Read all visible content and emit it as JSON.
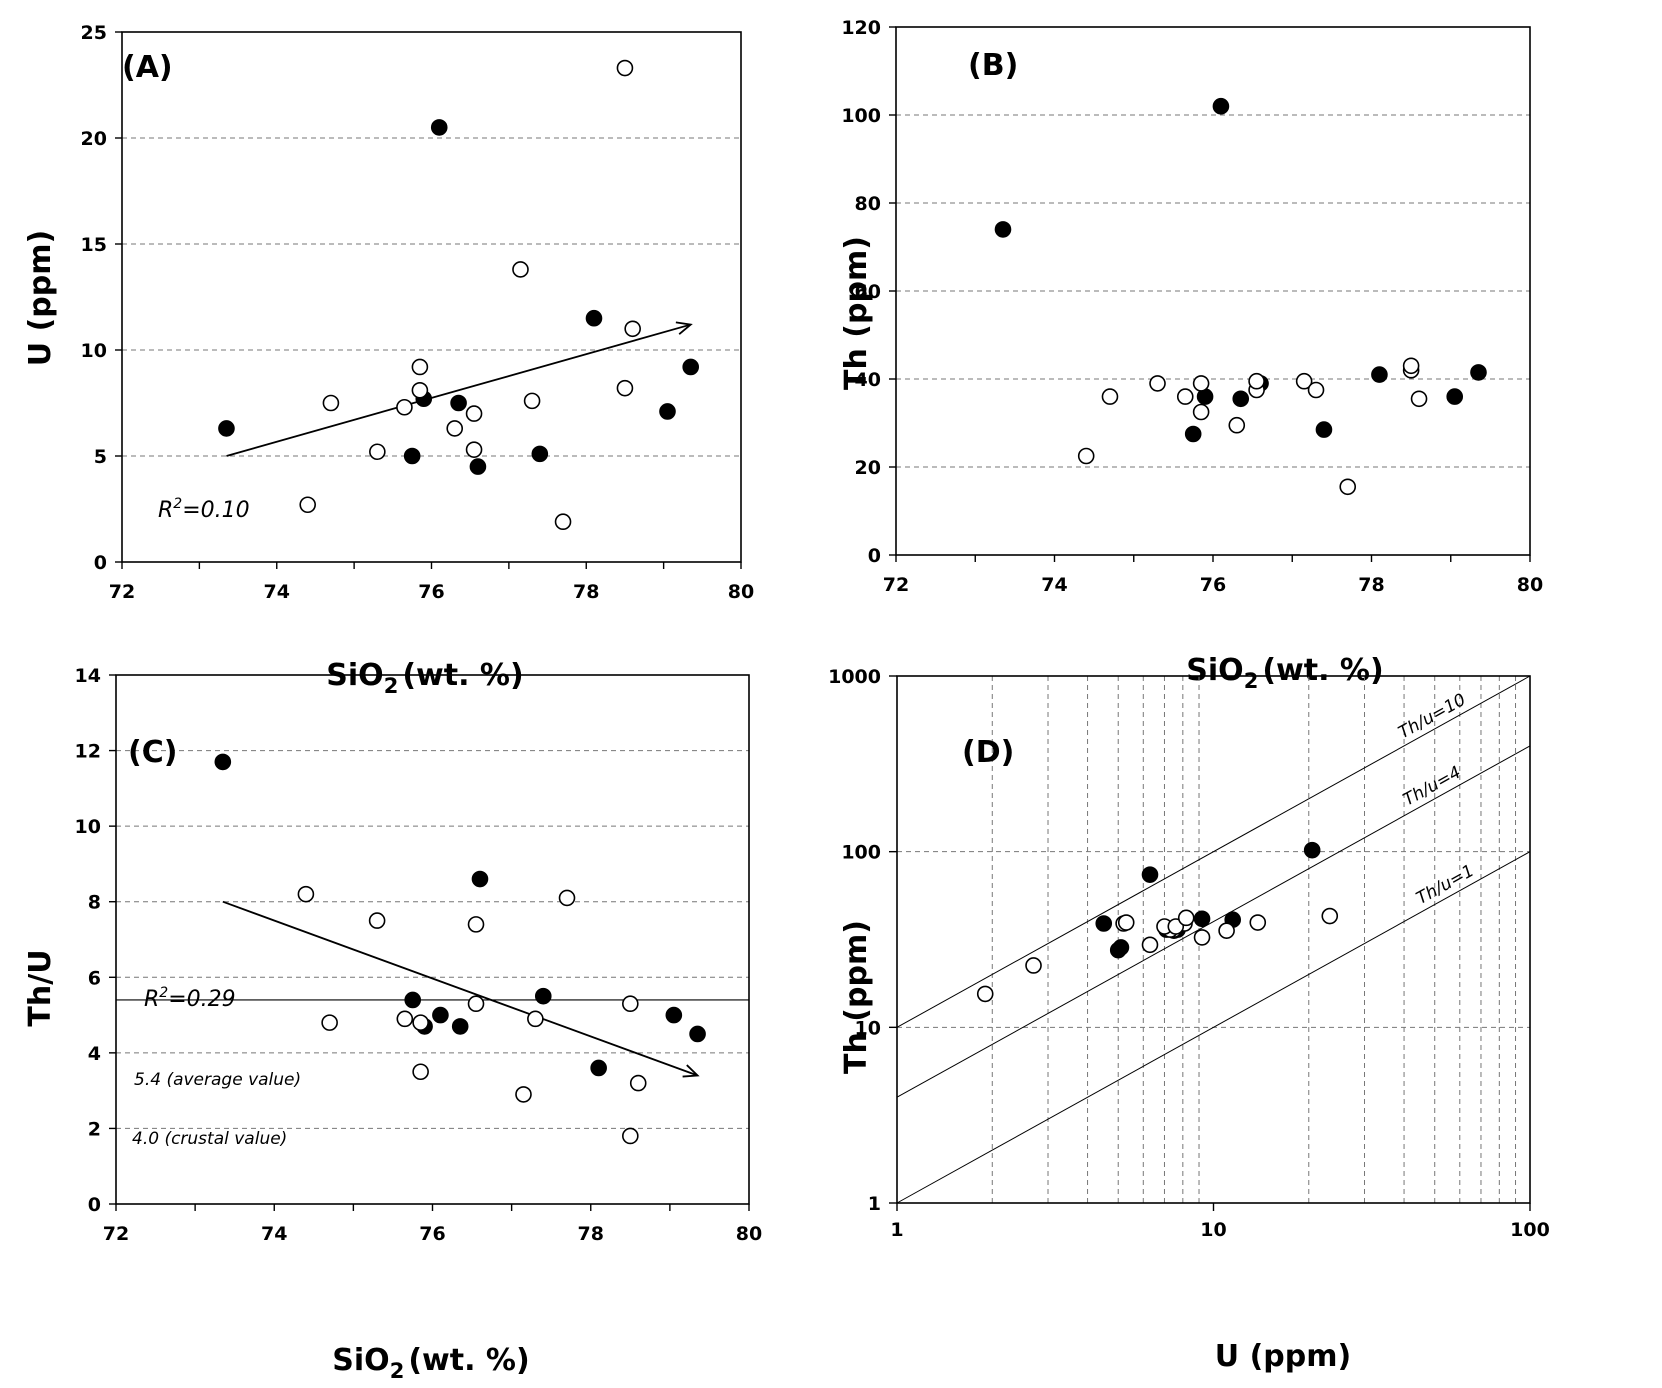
{
  "chart_data": [
    {
      "type": "scatter",
      "panel_label": "(A)",
      "xlabel_main": "SiO",
      "xlabel_sub": "2",
      "xlabel_rest": "(wt. %)",
      "ylabel": "U (ppm)",
      "xlim": [
        72,
        80
      ],
      "ylim": [
        0,
        25
      ],
      "xticks": [
        72,
        74,
        76,
        78,
        80
      ],
      "yticks": [
        0,
        5,
        10,
        15,
        20,
        25
      ],
      "ygrid": [
        5,
        10,
        15,
        20
      ],
      "series": [
        {
          "name": "filled",
          "filled": true,
          "x": [
            73.35,
            76.1,
            75.9,
            75.75,
            76.35,
            76.6,
            77.4,
            78.1,
            79.05,
            79.35
          ],
          "y": [
            6.3,
            20.5,
            7.7,
            5.0,
            7.5,
            4.5,
            5.1,
            11.5,
            7.1,
            9.2
          ]
        },
        {
          "name": "open",
          "filled": false,
          "x": [
            74.4,
            74.7,
            75.3,
            75.65,
            75.85,
            75.85,
            76.3,
            76.55,
            76.55,
            77.15,
            77.3,
            77.7,
            78.5,
            78.5,
            78.6
          ],
          "y": [
            2.7,
            7.5,
            5.2,
            7.3,
            9.2,
            8.1,
            6.3,
            7.0,
            5.3,
            13.8,
            7.6,
            1.9,
            8.2,
            23.3,
            11.0
          ]
        }
      ],
      "trend": {
        "x1": 73.35,
        "y1": 5.0,
        "x2": 79.35,
        "y2": 11.2
      },
      "r2_main": "R",
      "r2_sup": "2",
      "r2_rest": "=0.10"
    },
    {
      "type": "scatter",
      "panel_label": "(B)",
      "xlabel_main": "SiO",
      "xlabel_sub": "2",
      "xlabel_rest": "(wt. %)",
      "ylabel": "Th (ppm)",
      "xlim": [
        72,
        80
      ],
      "ylim": [
        0,
        120
      ],
      "xticks": [
        72,
        74,
        76,
        78,
        80
      ],
      "yticks": [
        0,
        20,
        40,
        60,
        80,
        100,
        120
      ],
      "ygrid": [
        20,
        40,
        60,
        80,
        100
      ],
      "series": [
        {
          "name": "filled",
          "filled": true,
          "x": [
            73.35,
            76.1,
            75.9,
            75.75,
            76.35,
            76.6,
            77.4,
            78.1,
            79.05,
            79.35
          ],
          "y": [
            74,
            102,
            36,
            27.5,
            35.5,
            39,
            28.5,
            41,
            36,
            41.5
          ]
        },
        {
          "name": "open",
          "filled": false,
          "x": [
            74.4,
            74.7,
            75.3,
            75.65,
            75.85,
            75.85,
            76.3,
            76.55,
            76.55,
            77.15,
            77.3,
            77.7,
            78.5,
            78.5,
            78.6
          ],
          "y": [
            22.5,
            36,
            39,
            36,
            32.5,
            39,
            29.5,
            37.5,
            39.5,
            39.5,
            37.5,
            15.5,
            42,
            43,
            35.5
          ]
        }
      ]
    },
    {
      "type": "scatter",
      "panel_label": "(C)",
      "xlabel_main": "SiO",
      "xlabel_sub": "2",
      "xlabel_rest": "(wt. %)",
      "ylabel": "Th/U",
      "xlim": [
        72,
        80
      ],
      "ylim": [
        0,
        14
      ],
      "xticks": [
        72,
        74,
        76,
        78,
        80
      ],
      "yticks": [
        0,
        2,
        4,
        6,
        8,
        10,
        12,
        14
      ],
      "ygrid": [
        2,
        4,
        6,
        8,
        10,
        12
      ],
      "series": [
        {
          "name": "filled",
          "filled": true,
          "x": [
            73.35,
            76.6,
            75.75,
            75.9,
            76.1,
            76.35,
            77.4,
            78.1,
            79.05,
            79.35
          ],
          "y": [
            11.7,
            8.6,
            5.4,
            4.7,
            5.0,
            4.7,
            5.5,
            3.6,
            5.0,
            4.5
          ]
        },
        {
          "name": "open",
          "filled": false,
          "x": [
            74.4,
            74.7,
            75.3,
            75.65,
            75.85,
            75.85,
            76.55,
            76.55,
            77.15,
            77.3,
            77.7,
            78.5,
            78.5,
            78.6
          ],
          "y": [
            8.2,
            4.8,
            7.5,
            4.9,
            4.8,
            3.5,
            7.4,
            5.3,
            2.9,
            4.9,
            8.1,
            5.3,
            1.8,
            3.2
          ]
        }
      ],
      "trend": {
        "x1": 73.35,
        "y1": 8.0,
        "x2": 79.35,
        "y2": 3.4
      },
      "hline": 5.4,
      "hline_label": "5.4 (average value)",
      "crustal_label": "4.0 (crustal value)",
      "r2_main": "R",
      "r2_sup": "2",
      "r2_rest": "=0.29"
    },
    {
      "type": "scatter",
      "panel_label": "(D)",
      "xlabel": "U (ppm)",
      "ylabel": "Th (ppm)",
      "xscale": "log",
      "yscale": "log",
      "xlim": [
        1,
        100
      ],
      "ylim": [
        1,
        1000
      ],
      "xticks": [
        1,
        10,
        100
      ],
      "yticks": [
        1,
        10,
        100,
        1000
      ],
      "series": [
        {
          "name": "filled",
          "filled": true,
          "x": [
            6.3,
            20.5,
            7.7,
            5.0,
            7.5,
            4.5,
            5.1,
            11.5,
            7.1,
            9.2
          ],
          "y": [
            74,
            102,
            36,
            27.5,
            35.5,
            39,
            28.5,
            41,
            36,
            41.5
          ]
        },
        {
          "name": "open",
          "filled": false,
          "x": [
            2.7,
            7.5,
            5.2,
            7.3,
            9.2,
            8.1,
            6.3,
            7.0,
            5.3,
            13.8,
            7.6,
            1.9,
            8.2,
            23.3,
            11.0
          ],
          "y": [
            22.5,
            36,
            39,
            36,
            32.5,
            39,
            29.5,
            37.5,
            39.5,
            39.5,
            37.5,
            15.5,
            42,
            43,
            35.5
          ]
        }
      ],
      "ratio_lines": [
        {
          "ratio": 10,
          "label": "Th/u=10"
        },
        {
          "ratio": 4,
          "label": "Th/u=4"
        },
        {
          "ratio": 1,
          "label": "Th/u=1"
        }
      ]
    }
  ]
}
